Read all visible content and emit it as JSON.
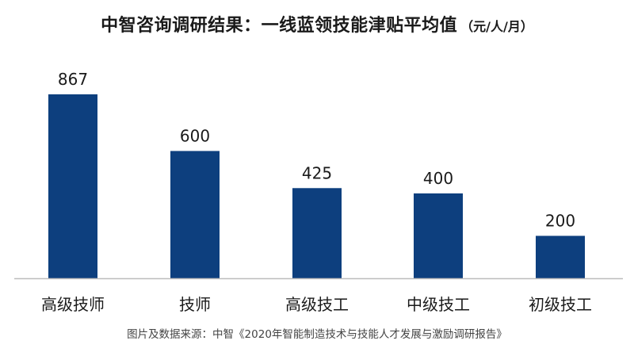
{
  "colors": {
    "bar": "#0d3f7e",
    "axis": "#bdbdbd",
    "text": "#1a1a1a"
  },
  "chart_data": {
    "type": "bar",
    "title": "中智咨询调研结果：一线蓝领技能津贴平均值",
    "unit": "（元/人/月）",
    "categories": [
      "高级技师",
      "技师",
      "高级技工",
      "中级技工",
      "初级技工"
    ],
    "values": [
      867,
      600,
      425,
      400,
      200
    ],
    "data_labels": [
      "867",
      "600",
      "425",
      "400",
      "200"
    ],
    "xlabel": "",
    "ylabel": "",
    "ylim": [
      0,
      867
    ],
    "grid": false,
    "legend": "none"
  },
  "source": "图片及数据来源：中智《2020年智能制造技术与技能人才发展与激励调研报告》"
}
